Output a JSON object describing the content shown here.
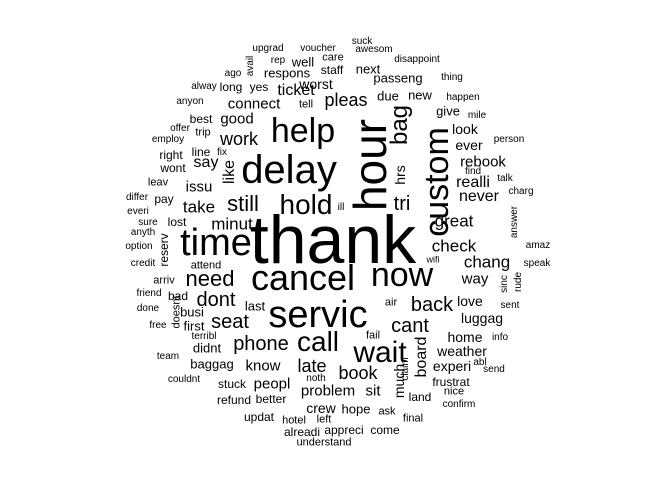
{
  "words": [
    {
      "text": "thank"
    },
    {
      "text": "hour"
    },
    {
      "text": "delay"
    },
    {
      "text": "servic"
    },
    {
      "text": "cancel"
    },
    {
      "text": "custom"
    },
    {
      "text": "time"
    },
    {
      "text": "help"
    },
    {
      "text": "now"
    },
    {
      "text": "wait"
    },
    {
      "text": "call"
    },
    {
      "text": "hold"
    },
    {
      "text": "bag"
    },
    {
      "text": "need"
    },
    {
      "text": "still"
    },
    {
      "text": "cant"
    },
    {
      "text": "seat"
    },
    {
      "text": "back"
    },
    {
      "text": "dont"
    },
    {
      "text": "phone"
    },
    {
      "text": "late"
    },
    {
      "text": "book"
    },
    {
      "text": "pleas"
    },
    {
      "text": "work"
    },
    {
      "text": "tri"
    },
    {
      "text": "check"
    },
    {
      "text": "great"
    },
    {
      "text": "chang"
    },
    {
      "text": "minut"
    },
    {
      "text": "take"
    },
    {
      "text": "ticket"
    },
    {
      "text": "like"
    },
    {
      "text": "say"
    },
    {
      "text": "good"
    },
    {
      "text": "connect"
    },
    {
      "text": "issu"
    },
    {
      "text": "hrs"
    },
    {
      "text": "never"
    },
    {
      "text": "realli"
    },
    {
      "text": "rebook"
    },
    {
      "text": "ever"
    },
    {
      "text": "look"
    },
    {
      "text": "give"
    },
    {
      "text": "way"
    },
    {
      "text": "love"
    },
    {
      "text": "luggag"
    },
    {
      "text": "home"
    },
    {
      "text": "weather"
    },
    {
      "text": "experi"
    },
    {
      "text": "board"
    },
    {
      "text": "much"
    },
    {
      "text": "sit"
    },
    {
      "text": "problem"
    },
    {
      "text": "know"
    },
    {
      "text": "peopl"
    },
    {
      "text": "crew"
    },
    {
      "text": "hope"
    },
    {
      "text": "baggag"
    },
    {
      "text": "didnt"
    },
    {
      "text": "first"
    },
    {
      "text": "busi"
    },
    {
      "text": "last"
    },
    {
      "text": "worst"
    },
    {
      "text": "respons"
    },
    {
      "text": "passeng"
    },
    {
      "text": "next"
    },
    {
      "text": "due"
    },
    {
      "text": "new"
    },
    {
      "text": "well"
    },
    {
      "text": "care"
    },
    {
      "text": "staff"
    },
    {
      "text": "yes"
    },
    {
      "text": "long"
    },
    {
      "text": "best"
    },
    {
      "text": "tell"
    },
    {
      "text": "trip"
    },
    {
      "text": "line"
    },
    {
      "text": "right"
    },
    {
      "text": "wont"
    },
    {
      "text": "leav"
    },
    {
      "text": "pay"
    },
    {
      "text": "lost"
    },
    {
      "text": "reserv"
    },
    {
      "text": "arriv"
    },
    {
      "text": "bad"
    },
    {
      "text": "doesnt"
    },
    {
      "text": "free"
    },
    {
      "text": "attend"
    },
    {
      "text": "fix"
    },
    {
      "text": "ill"
    },
    {
      "text": "air"
    },
    {
      "text": "fail"
    },
    {
      "text": "stuck"
    },
    {
      "text": "better"
    },
    {
      "text": "refund"
    },
    {
      "text": "updat"
    },
    {
      "text": "hotel"
    },
    {
      "text": "left"
    },
    {
      "text": "alreadi"
    },
    {
      "text": "appreci"
    },
    {
      "text": "come"
    },
    {
      "text": "ask"
    },
    {
      "text": "land"
    },
    {
      "text": "final"
    },
    {
      "text": "frustrat"
    },
    {
      "text": "nice"
    },
    {
      "text": "confirm"
    },
    {
      "text": "send"
    },
    {
      "text": "info"
    },
    {
      "text": "abl"
    },
    {
      "text": "claim"
    },
    {
      "text": "noth"
    },
    {
      "text": "understand"
    },
    {
      "text": "terribl"
    },
    {
      "text": "team"
    },
    {
      "text": "couldnt"
    },
    {
      "text": "done"
    },
    {
      "text": "friend"
    },
    {
      "text": "credit"
    },
    {
      "text": "option"
    },
    {
      "text": "anyth"
    },
    {
      "text": "sure"
    },
    {
      "text": "everi"
    },
    {
      "text": "differ"
    },
    {
      "text": "employ"
    },
    {
      "text": "offer"
    },
    {
      "text": "anyon"
    },
    {
      "text": "alway"
    },
    {
      "text": "ago"
    },
    {
      "text": "avail"
    },
    {
      "text": "rep"
    },
    {
      "text": "upgrad"
    },
    {
      "text": "voucher"
    },
    {
      "text": "suck"
    },
    {
      "text": "awesom"
    },
    {
      "text": "disappoint"
    },
    {
      "text": "thing"
    },
    {
      "text": "happen"
    },
    {
      "text": "mile"
    },
    {
      "text": "person"
    },
    {
      "text": "find"
    },
    {
      "text": "talk"
    },
    {
      "text": "charg"
    },
    {
      "text": "answer"
    },
    {
      "text": "amaz"
    },
    {
      "text": "speak"
    },
    {
      "text": "wifi"
    },
    {
      "text": "sinc"
    },
    {
      "text": "rude"
    },
    {
      "text": "sent"
    }
  ]
}
